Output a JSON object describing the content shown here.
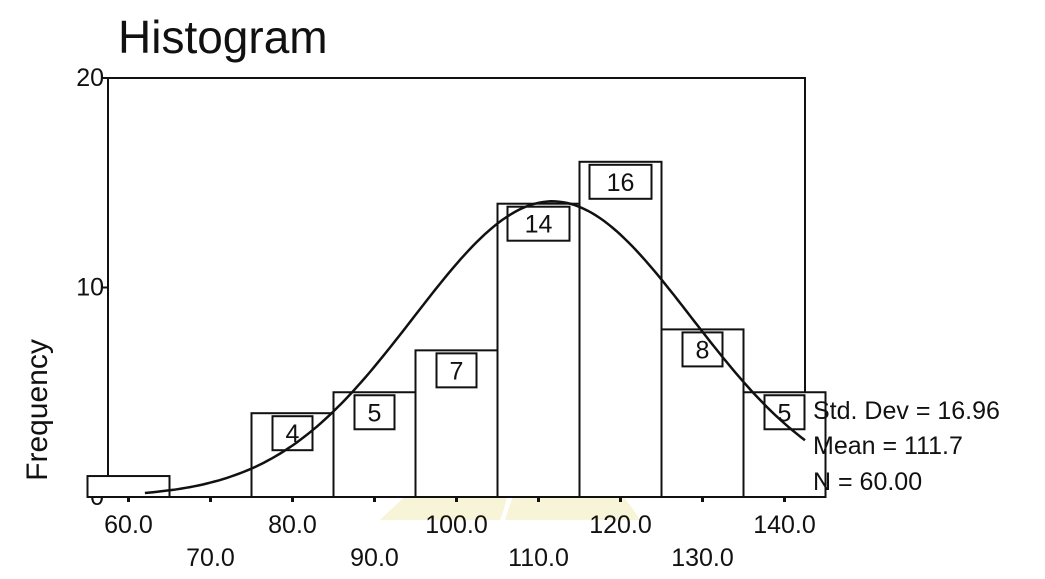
{
  "chart_data": {
    "type": "bar",
    "title": "Histogram",
    "xlabel": "",
    "ylabel": "Frequency",
    "categories": [
      "60.0",
      "70.0",
      "80.0",
      "90.0",
      "100.0",
      "110.0",
      "120.0",
      "130.0",
      "140.0"
    ],
    "values": [
      1,
      0,
      4,
      5,
      7,
      14,
      16,
      8,
      5
    ],
    "bar_labels": [
      "",
      "",
      "4",
      "5",
      "7",
      "14",
      "16",
      "8",
      "5"
    ],
    "bin_width": 10,
    "xlim": [
      57.5,
      142.5
    ],
    "ylim": [
      0,
      20
    ],
    "yticks": [
      0,
      10,
      20
    ],
    "xticks_upper": [
      "60.0",
      "80.0",
      "100.0",
      "120.0",
      "140.0"
    ],
    "xticks_lower": [
      "70.0",
      "90.0",
      "110.0",
      "130.0"
    ],
    "normal_curve": {
      "mean": 111.7,
      "std": 16.96,
      "n": 60
    },
    "stats": {
      "std_dev": "Std. Dev = 16.96",
      "mean": "Mean = 111.7",
      "n": "N = 60.00"
    },
    "grid": false,
    "colors": {
      "bars": "#ffffff",
      "outline": "#111111",
      "curve": "#111111"
    }
  }
}
